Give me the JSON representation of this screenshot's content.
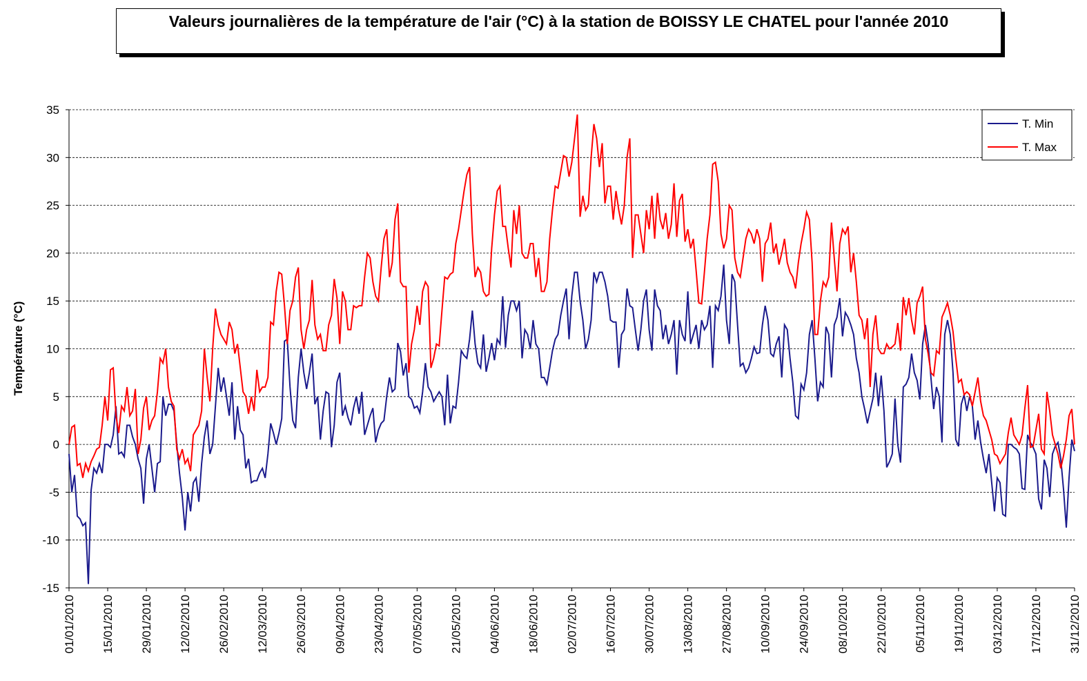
{
  "chart_data": {
    "type": "line",
    "title": "Valeurs journalières de la température de l'air (°C) à la station de BOISSY LE CHATEL pour l'année 2010",
    "ylabel": "Température (°C)",
    "ylim": [
      -15,
      35
    ],
    "yticks": [
      -15,
      -10,
      -5,
      0,
      5,
      10,
      15,
      20,
      25,
      30,
      35
    ],
    "grid": true,
    "legend": "upper right",
    "categories": [
      "01/01/2010",
      null,
      null,
      null,
      null,
      null,
      null,
      null,
      null,
      null,
      null,
      null,
      null,
      null,
      "15/01/2010",
      null,
      null,
      null,
      null,
      null,
      null,
      null,
      null,
      null,
      null,
      null,
      null,
      null,
      "29/01/2010",
      null,
      null,
      null,
      null,
      null,
      null,
      null,
      null,
      null,
      null,
      null,
      null,
      null,
      "12/02/2010",
      null,
      null,
      null,
      null,
      null,
      null,
      null,
      null,
      null,
      null,
      null,
      null,
      null,
      "26/02/2010",
      null,
      null,
      null,
      null,
      null,
      null,
      null,
      null,
      null,
      null,
      null,
      null,
      null,
      "12/03/2010",
      null,
      null,
      null,
      null,
      null,
      null,
      null,
      null,
      null,
      null,
      null,
      null,
      null,
      "26/03/2010",
      null,
      null,
      null,
      null,
      null,
      null,
      null,
      null,
      null,
      null,
      null,
      null,
      null,
      "09/04/2010",
      null,
      null,
      null,
      null,
      null,
      null,
      null,
      null,
      null,
      null,
      null,
      null,
      null,
      "23/04/2010",
      null,
      null,
      null,
      null,
      null,
      null,
      null,
      null,
      null,
      null,
      null,
      null,
      null,
      "07/05/2010",
      null,
      null,
      null,
      null,
      null,
      null,
      null,
      null,
      null,
      null,
      null,
      null,
      null,
      "21/05/2010",
      null,
      null,
      null,
      null,
      null,
      null,
      null,
      null,
      null,
      null,
      null,
      null,
      null,
      "04/06/2010",
      null,
      null,
      null,
      null,
      null,
      null,
      null,
      null,
      null,
      null,
      null,
      null,
      null,
      "18/06/2010",
      null,
      null,
      null,
      null,
      null,
      null,
      null,
      null,
      null,
      null,
      null,
      null,
      null,
      "02/07/2010",
      null,
      null,
      null,
      null,
      null,
      null,
      null,
      null,
      null,
      null,
      null,
      null,
      null,
      "16/07/2010",
      null,
      null,
      null,
      null,
      null,
      null,
      null,
      null,
      null,
      null,
      null,
      null,
      null,
      "30/07/2010",
      null,
      null,
      null,
      null,
      null,
      null,
      null,
      null,
      null,
      null,
      null,
      null,
      null,
      "13/08/2010",
      null,
      null,
      null,
      null,
      null,
      null,
      null,
      null,
      null,
      null,
      null,
      null,
      null,
      "27/08/2010",
      null,
      null,
      null,
      null,
      null,
      null,
      null,
      null,
      null,
      null,
      null,
      null,
      null,
      "10/09/2010",
      null,
      null,
      null,
      null,
      null,
      null,
      null,
      null,
      null,
      null,
      null,
      null,
      null,
      "24/09/2010",
      null,
      null,
      null,
      null,
      null,
      null,
      null,
      null,
      null,
      null,
      null,
      null,
      null,
      "08/10/2010",
      null,
      null,
      null,
      null,
      null,
      null,
      null,
      null,
      null,
      null,
      null,
      null,
      null,
      "22/10/2010",
      null,
      null,
      null,
      null,
      null,
      null,
      null,
      null,
      null,
      null,
      null,
      null,
      null,
      "05/11/2010",
      null,
      null,
      null,
      null,
      null,
      null,
      null,
      null,
      null,
      null,
      null,
      null,
      null,
      "19/11/2010",
      null,
      null,
      null,
      null,
      null,
      null,
      null,
      null,
      null,
      null,
      null,
      null,
      null,
      "03/12/2010",
      null,
      null,
      null,
      null,
      null,
      null,
      null,
      null,
      null,
      null,
      null,
      null,
      null,
      "17/12/2010",
      null,
      null,
      null,
      null,
      null,
      null,
      null,
      null,
      null,
      null,
      null,
      null,
      null,
      "31/12/2010"
    ],
    "series": [
      {
        "name": "T. Min",
        "color": "#1a1a8c",
        "values": [
          -1,
          -5,
          -3.2,
          -7.5,
          -7.8,
          -8.5,
          -8.2,
          -14.6,
          -4.8,
          -2.5,
          -3,
          -2,
          -3,
          0,
          0,
          -0.3,
          1,
          4,
          -1,
          -0.8,
          -1.3,
          2,
          2,
          0.8,
          0,
          -1.5,
          -2.5,
          -6.2,
          -1.5,
          0,
          -2.5,
          -5,
          -2,
          -1.8,
          5,
          3,
          4.2,
          4.2,
          3.5,
          0,
          -3,
          -5.5,
          -9,
          -5,
          -7,
          -4,
          -3.5,
          -6,
          -2,
          0.8,
          2.5,
          -1,
          0,
          4,
          8,
          5.5,
          7,
          5,
          3,
          6.5,
          0.5,
          4,
          1.5,
          1,
          -2.5,
          -1.5,
          -4,
          -3.8,
          -3.8,
          -3,
          -2.5,
          -3.5,
          -1,
          2.2,
          1.2,
          0,
          1.2,
          2.7,
          10.8,
          11,
          6,
          2.5,
          1.7,
          7,
          10,
          7.5,
          5.8,
          7.5,
          9.5,
          4.2,
          5,
          0.5,
          3.5,
          5.5,
          5.3,
          -0.3,
          2,
          6.5,
          7.5,
          3,
          4,
          2.8,
          2,
          3.8,
          5,
          3.2,
          5.5,
          1,
          2,
          3,
          3.8,
          0.2,
          1.5,
          2.2,
          2.5,
          5,
          7,
          5.5,
          5.8,
          10.6,
          9.7,
          7.2,
          8.5,
          5,
          4.7,
          3.8,
          4,
          3.3,
          5.5,
          8.5,
          6,
          5.5,
          4.5,
          5,
          5.5,
          5,
          2,
          7.3,
          2.2,
          4,
          3.8,
          6.5,
          9.8,
          9.3,
          9,
          11,
          14,
          10.5,
          8.5,
          8,
          11.5,
          7.6,
          9,
          10.6,
          8.8,
          11,
          10.5,
          15.5,
          10.1,
          13.5,
          15,
          15,
          14,
          15,
          9,
          12,
          11.5,
          10,
          13,
          10.5,
          10,
          7,
          7,
          6.3,
          8,
          9.8,
          11,
          11.5,
          13.5,
          15,
          16.3,
          11,
          15.5,
          18,
          18,
          15,
          13,
          10,
          11,
          13,
          18,
          17,
          18,
          18,
          17,
          15.5,
          13,
          12.8,
          12.8,
          8,
          11.5,
          12,
          16.3,
          14.5,
          14.3,
          12,
          9.8,
          12,
          15,
          16.2,
          12,
          9.8,
          16.2,
          14.5,
          14,
          11,
          12.5,
          10.5,
          11.5,
          13,
          7.3,
          13,
          11.5,
          10.8,
          16,
          10.5,
          11.5,
          12.5,
          10,
          13,
          12,
          12.5,
          14.5,
          8,
          14.5,
          14,
          15.5,
          18.8,
          13,
          10.5,
          17.8,
          17,
          12.5,
          8.2,
          8.5,
          7.5,
          8,
          9,
          10.2,
          9.5,
          9.6,
          12.5,
          14.5,
          13,
          9.5,
          9.2,
          10.5,
          11.3,
          7,
          12.5,
          12,
          9,
          6.5,
          3,
          2.7,
          6.3,
          5.7,
          7.5,
          11.5,
          13,
          9,
          4.5,
          6.5,
          6,
          12.3,
          11.5,
          7,
          12.5,
          13.3,
          15.3,
          11.3,
          13.8,
          13.3,
          12.5,
          11.5,
          9,
          7.5,
          5,
          3.7,
          2.2,
          3.5,
          4.8,
          7.5,
          4,
          7.2,
          3.5,
          -2.4,
          -1.8,
          -1,
          4.8,
          0,
          -1.9,
          6,
          6.3,
          7,
          9.5,
          7.5,
          6.7,
          4.7,
          10.5,
          12.5,
          10.5,
          7,
          3.7,
          6,
          5,
          0.2,
          11.5,
          13,
          11.5,
          7.5,
          0.5,
          -0.2,
          4.2,
          5.2,
          3.5,
          5,
          4,
          0.5,
          2.5,
          0.2,
          -1.5,
          -3,
          -1,
          -4,
          -7,
          -3.5,
          -4,
          -7.3,
          -7.5,
          0,
          0,
          -0.3,
          -0.5,
          -1,
          -4.6,
          -4.7,
          1,
          0.2,
          -0.3,
          -1,
          -5.7,
          -6.8,
          -1.6,
          -2.5,
          -5.5,
          -1,
          -0.2,
          0.2,
          -1.5,
          -4.7,
          -8.7,
          -3.5,
          0.5,
          -0.7
        ]
      },
      {
        "name": "T. Max",
        "color": "#ff0000",
        "values": [
          0,
          1.8,
          2,
          -2.2,
          -2,
          -3.5,
          -2,
          -2.8,
          -1.8,
          -1.2,
          -0.5,
          -0.3,
          2,
          5,
          2.5,
          7.8,
          8,
          3,
          1.2,
          4,
          3.5,
          6,
          3,
          3.5,
          5.8,
          -1,
          0.5,
          3.8,
          5,
          1.5,
          2.5,
          3,
          5.5,
          9,
          8.5,
          10,
          6,
          4.5,
          4,
          -0.5,
          -1.5,
          -0.5,
          -2,
          -1.5,
          -2.8,
          1,
          1.5,
          2,
          3.5,
          10,
          7,
          4.5,
          10,
          14.2,
          12.5,
          11.5,
          11,
          10.5,
          12.8,
          12,
          9.5,
          10.5,
          8,
          5.5,
          5,
          3.2,
          5,
          3.5,
          7.8,
          5.5,
          6,
          6,
          7,
          12.8,
          12.5,
          16,
          18,
          17.8,
          14.5,
          10.5,
          14,
          15,
          17.5,
          18.5,
          12,
          10,
          12,
          13,
          17.2,
          12.5,
          11,
          11.5,
          9.8,
          9.8,
          12.5,
          13.5,
          17.3,
          15.3,
          10.5,
          16,
          15,
          12,
          12,
          14.5,
          14.3,
          14.5,
          14.5,
          17.5,
          20,
          19.5,
          17,
          15.5,
          15,
          18.5,
          21.5,
          22.5,
          17.5,
          19,
          23.5,
          25.2,
          17,
          16.5,
          16.5,
          7.5,
          10.5,
          12,
          14.5,
          12.5,
          16,
          17,
          16.5,
          8,
          9,
          10.5,
          10.3,
          14,
          17.5,
          17.3,
          17.8,
          18,
          21,
          22.5,
          24.5,
          26.5,
          28.2,
          29,
          22,
          17.5,
          18.5,
          18,
          16,
          15.5,
          15.7,
          20.5,
          24,
          26.5,
          27,
          22.8,
          22.8,
          20.5,
          18.5,
          24.5,
          22,
          25,
          20,
          19.5,
          19.5,
          21,
          21,
          17.5,
          19.5,
          16,
          16,
          17,
          21.5,
          24.5,
          27,
          26.8,
          28.5,
          30.2,
          30,
          28,
          29.5,
          32,
          34.5,
          23.8,
          26,
          24.5,
          25,
          30,
          33.5,
          32,
          29,
          31.5,
          25.2,
          27,
          27,
          23.5,
          26.5,
          24.5,
          23,
          25,
          30,
          32,
          19.5,
          24,
          24,
          22,
          20,
          24.5,
          22.5,
          26,
          21.5,
          26.3,
          23.5,
          22.5,
          24.2,
          21.5,
          23,
          27.3,
          21.7,
          25.5,
          26.2,
          21.2,
          22.5,
          20.5,
          21.5,
          18.2,
          14.8,
          14.7,
          18,
          21.5,
          24,
          29.3,
          29.5,
          27.5,
          22,
          20.5,
          21.5,
          25,
          24.5,
          19.5,
          18,
          17.5,
          19.5,
          21.5,
          22.5,
          22,
          21,
          22.5,
          21.5,
          17,
          21,
          21.5,
          23.2,
          20,
          21,
          18.8,
          20,
          21.5,
          19,
          18,
          17.5,
          16.3,
          19,
          21,
          22.5,
          24.3,
          23.5,
          19,
          11.5,
          11.5,
          15,
          17,
          16.5,
          17.5,
          23.2,
          19.5,
          16,
          21,
          22.5,
          22,
          22.8,
          18,
          20,
          17,
          13.5,
          13,
          11,
          13.2,
          6,
          11.5,
          13.5,
          10,
          9.5,
          9.5,
          10.5,
          10,
          10.2,
          10.5,
          12.7,
          9.8,
          15.4,
          13.5,
          15.3,
          13,
          11.5,
          14.8,
          15.5,
          16.5,
          11,
          9.5,
          7.5,
          7.2,
          9.8,
          9.5,
          13.3,
          14,
          14.8,
          13.5,
          11.8,
          9,
          6.5,
          6.8,
          5.2,
          5.5,
          5.2,
          4,
          5.5,
          7,
          4.5,
          3,
          2.5,
          1.5,
          0.5,
          -1,
          -1.2,
          -2,
          -1.5,
          -1,
          1.2,
          2.8,
          1,
          0.5,
          0,
          1,
          3.8,
          6.2,
          -0.3,
          -0.2,
          1.5,
          3.2,
          -0.5,
          -1,
          5.5,
          3.5,
          1,
          0,
          -1,
          -2.5,
          -1.2,
          0.5,
          3,
          3.7,
          0
        ]
      }
    ]
  }
}
